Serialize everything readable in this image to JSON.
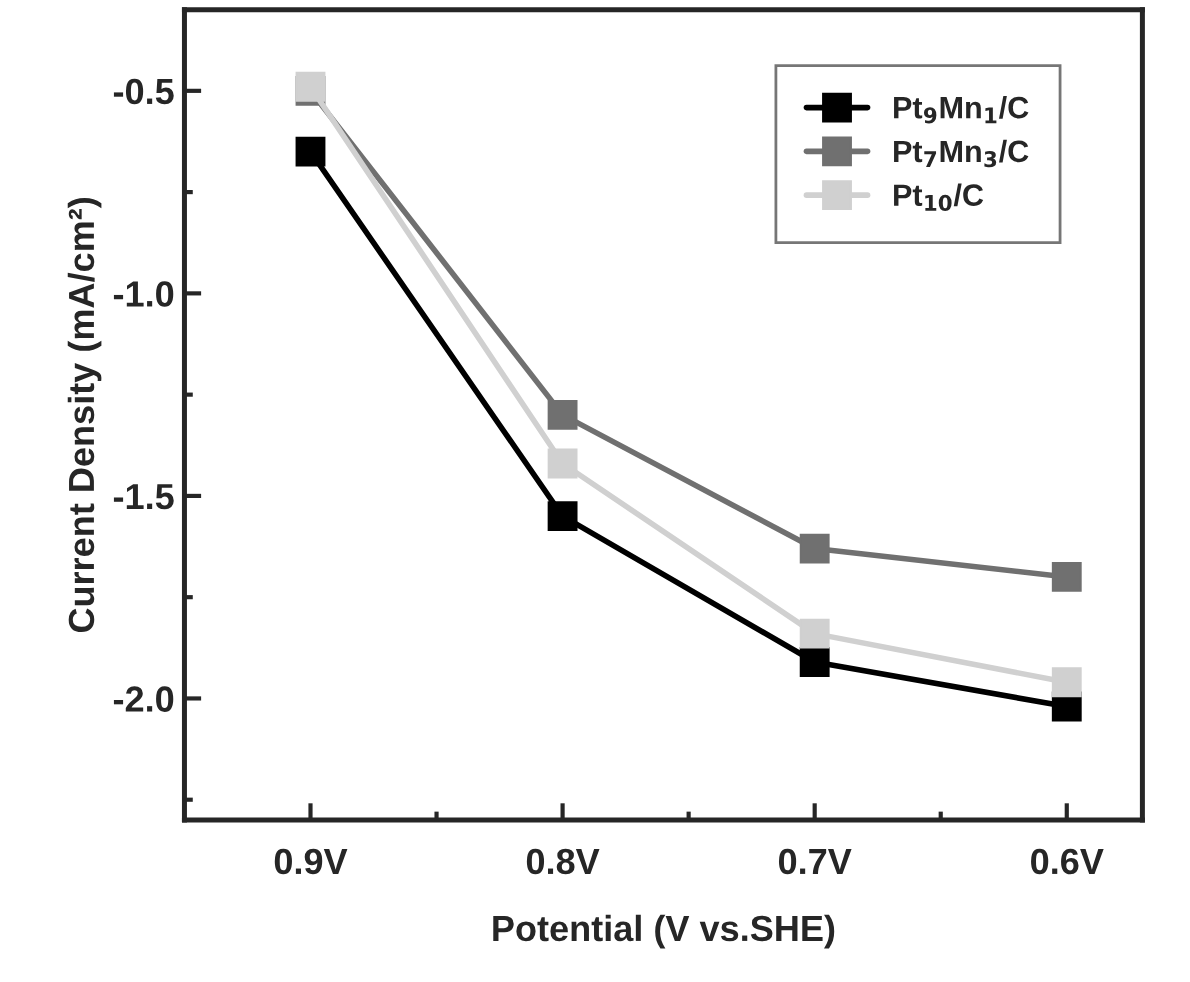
{
  "chart_data": {
    "type": "line",
    "xlabel": "Potential (V vs.SHE)",
    "ylabel": "Current Density (mA/cm²)",
    "categories": [
      "0.9V",
      "0.8V",
      "0.7V",
      "0.6V"
    ],
    "series": [
      {
        "name": "Pt$_{9}$Mn$_{1}$/C",
        "color": "#000000",
        "values": [
          -0.65,
          -1.55,
          -1.91,
          -2.02
        ]
      },
      {
        "name": "Pt$_{7}$Mn$_{3}$/C",
        "color": "#707070",
        "values": [
          -0.5,
          -1.3,
          -1.63,
          -1.7
        ]
      },
      {
        "name": "Pt$_{10}$/C",
        "color": "#d0d0d0",
        "values": [
          -0.49,
          -1.42,
          -1.84,
          -1.96
        ]
      }
    ],
    "ylim": [
      -2.3,
      -0.3
    ],
    "yticks": [
      {
        "value": -2,
        "label": "-2.0"
      },
      -1.5,
      {
        "value": -1,
        "label": "-1.0"
      },
      -0.5
    ],
    "marker": "square",
    "line_style": "solid",
    "legend": "top right",
    "grid": false
  }
}
